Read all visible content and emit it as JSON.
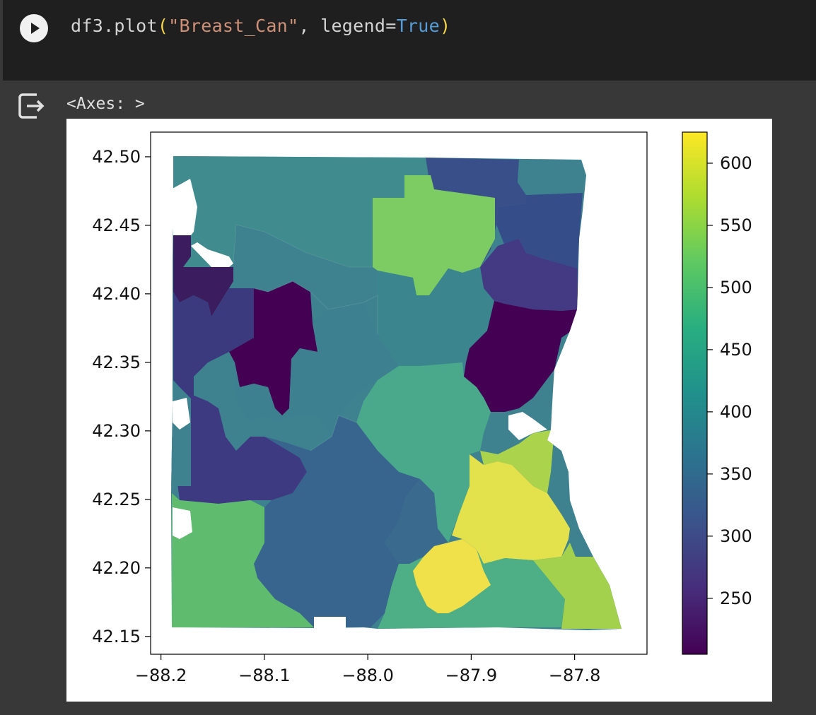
{
  "cell": {
    "code": {
      "prefix": "df3.plot",
      "open_paren": "(",
      "string_arg": "\"Breast_Can\"",
      "middle": ", legend=",
      "keyword": "True",
      "close_paren": ")"
    },
    "run_icon": "play-icon"
  },
  "output": {
    "icon": "output-redirect-icon",
    "text": "<Axes: >"
  },
  "chart_data": {
    "type": "choropleth",
    "variable": "Breast_Can",
    "colormap": "viridis",
    "xlim": [
      -88.21,
      -87.73
    ],
    "ylim": [
      42.137,
      42.518
    ],
    "x_ticks": [
      "−88.2",
      "−88.1",
      "−88.0",
      "−87.9",
      "−87.8"
    ],
    "y_ticks": [
      "42.50",
      "42.45",
      "42.40",
      "42.35",
      "42.30",
      "42.25",
      "42.20",
      "42.15"
    ],
    "colorbar": {
      "range": [
        205,
        625
      ],
      "ticks": [
        "600",
        "550",
        "500",
        "450",
        "400",
        "350",
        "300",
        "250"
      ]
    },
    "legend": "colorbar-right"
  },
  "colors": {
    "viridis_dark": "#440154",
    "viridis_purple": "#3b3a7f",
    "viridis_blue": "#31688e",
    "viridis_teal": "#3e8290",
    "viridis_green": "#4daa8a",
    "viridis_lightgreen": "#5dbb6e",
    "viridis_lime": "#80cb64",
    "viridis_yellowgreen": "#abd44c",
    "viridis_yellow": "#e3e14c"
  }
}
